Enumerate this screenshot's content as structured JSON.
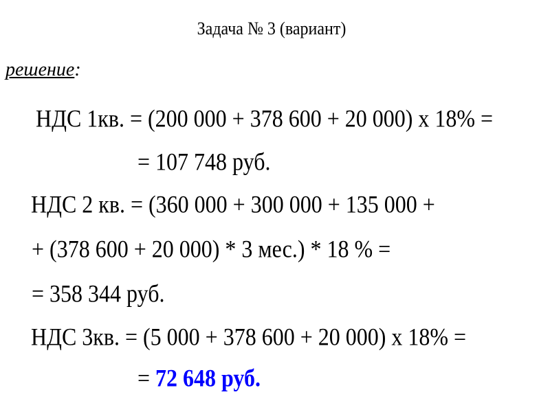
{
  "title": "Задача № 3 (вариант)",
  "solution_label": "решение",
  "solution_colon": ":",
  "lines": [
    "НДС 1кв. = (200 000 + 378 600 + 20 000) х 18% =",
    "= 107 748 руб.",
    "НДС 2 кв. = (360 000 + 300 000 + 135 000 +",
    " + (378 600 + 20 000) * 3 мес.) * 18 % =",
    " = 358 344 руб.",
    "НДС 3кв. = (5 000 + 378 600 + 20 000) х 18% ="
  ],
  "final": {
    "prefix": "= ",
    "value": "72 648 руб."
  },
  "colors": {
    "highlight": "#0000ff"
  }
}
